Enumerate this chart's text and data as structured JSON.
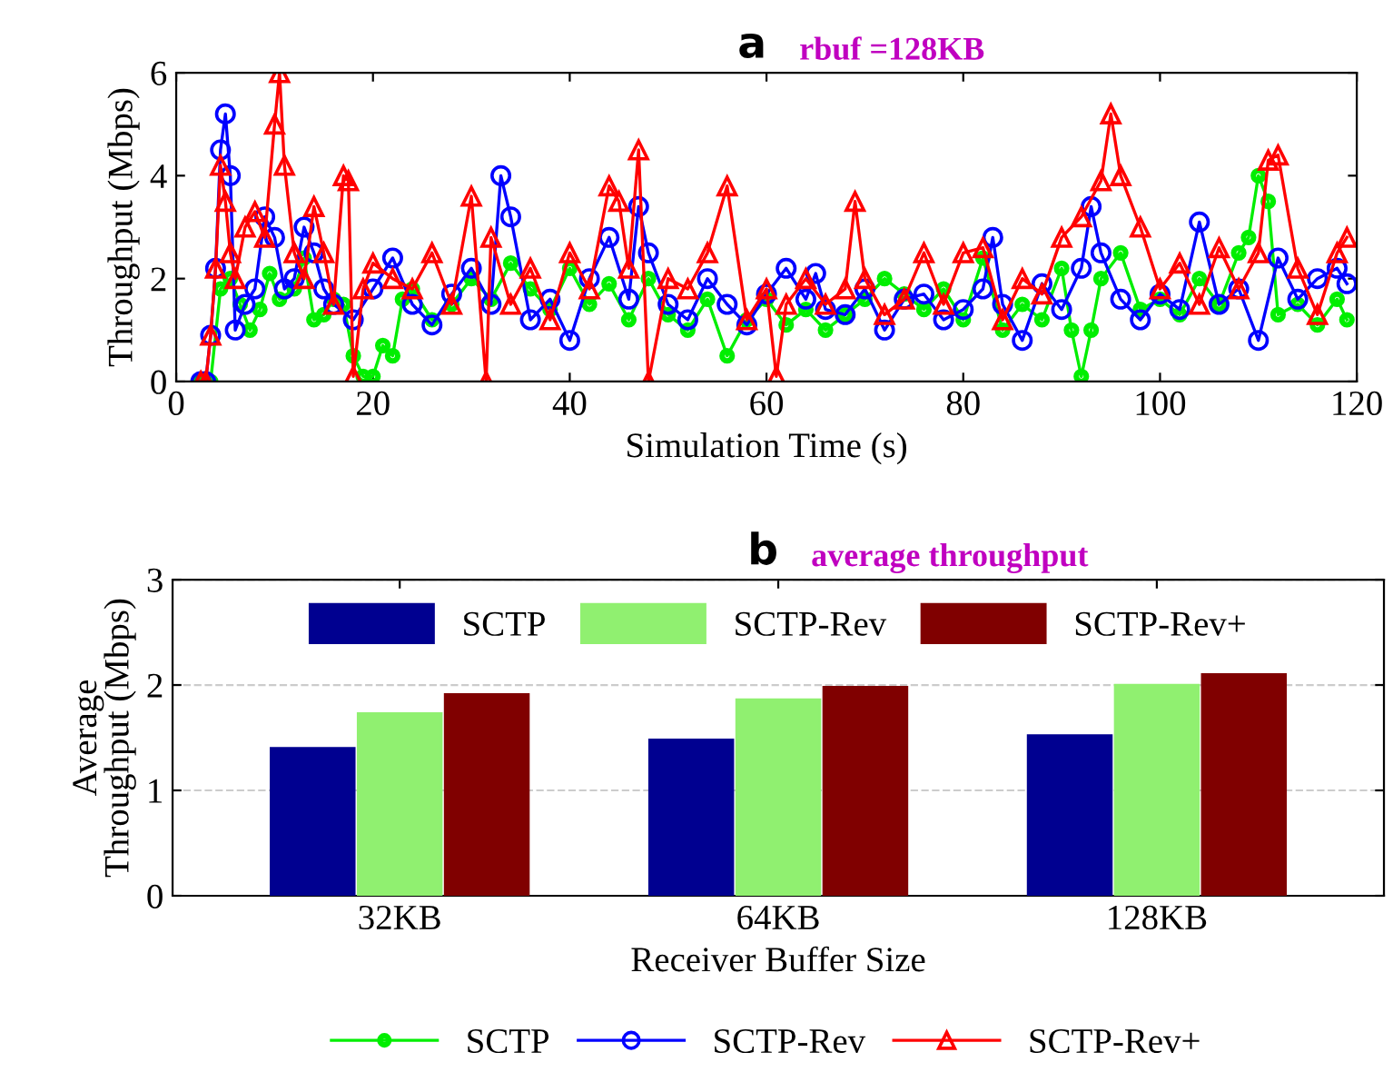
{
  "chart_data": [
    {
      "type": "line",
      "title": "a",
      "subtitle": "rbuf =128KB",
      "xlabel": "Simulation Time (s)",
      "ylabel": "Throughput (Mbps)",
      "xlim": [
        0,
        120
      ],
      "xticks": [
        0,
        20,
        40,
        60,
        80,
        100,
        120
      ],
      "ylim": [
        0,
        6
      ],
      "yticks": [
        0,
        2,
        4,
        6
      ],
      "grid": false,
      "legend": "bottom",
      "line_style": "solid",
      "series": [
        {
          "name": "SCTP",
          "color": "#00ee00",
          "marker": "circle",
          "x": [
            2.5,
            3,
            3.5,
            4.5,
            5.5,
            6.5,
            7.5,
            8.5,
            9.5,
            10.5,
            12,
            13,
            14,
            15,
            16,
            17,
            18,
            19,
            20,
            21,
            22,
            23,
            24,
            26,
            28,
            30,
            32,
            34,
            36,
            38,
            40,
            42,
            44,
            46,
            48,
            50,
            52,
            54,
            56,
            58,
            60,
            62,
            64,
            66,
            68,
            70,
            72,
            74,
            76,
            78,
            80,
            82,
            84,
            86,
            88,
            90,
            91,
            92,
            93,
            94,
            96,
            98,
            100,
            102,
            104,
            106,
            108,
            109,
            110,
            111,
            112,
            114,
            116,
            118,
            119
          ],
          "values": [
            0,
            0,
            0,
            1.8,
            2,
            1.5,
            1,
            1.4,
            2.1,
            1.6,
            1.8,
            2.4,
            1.2,
            1.3,
            1.6,
            1.5,
            0.5,
            0.1,
            0.1,
            0.7,
            0.5,
            1.6,
            1.8,
            1.2,
            1.5,
            2.0,
            1.6,
            2.3,
            1.8,
            1.4,
            2.2,
            1.5,
            1.9,
            1.2,
            2.0,
            1.3,
            1.0,
            1.6,
            0.5,
            1.2,
            1.6,
            1.1,
            1.4,
            1.0,
            1.3,
            1.6,
            2.0,
            1.7,
            1.4,
            1.8,
            1.2,
            2.4,
            1.0,
            1.5,
            1.2,
            2.2,
            1.0,
            0.1,
            1.0,
            2.0,
            2.5,
            1.4,
            1.6,
            1.3,
            2.0,
            1.5,
            2.5,
            2.8,
            4.0,
            3.5,
            1.3,
            1.5,
            1.1,
            1.6,
            1.2
          ]
        },
        {
          "name": "SCTP-Rev",
          "color": "#0000ff",
          "marker": "circle",
          "x": [
            2.5,
            3,
            3.5,
            4,
            4.5,
            5,
            5.5,
            6,
            7,
            8,
            9,
            10,
            11,
            12,
            13,
            14,
            15,
            16,
            18,
            20,
            22,
            24,
            26,
            28,
            30,
            32,
            33,
            34,
            36,
            38,
            40,
            42,
            44,
            46,
            47,
            48,
            50,
            52,
            54,
            56,
            58,
            60,
            62,
            64,
            65,
            66,
            68,
            70,
            72,
            74,
            76,
            78,
            80,
            82,
            83,
            84,
            86,
            88,
            90,
            92,
            93,
            94,
            96,
            98,
            100,
            102,
            104,
            106,
            108,
            110,
            112,
            114,
            116,
            118,
            119
          ],
          "values": [
            0,
            0,
            0.9,
            2.2,
            4.5,
            5.2,
            4.0,
            1.0,
            1.5,
            1.8,
            3.2,
            2.8,
            1.8,
            2.0,
            3.0,
            2.5,
            1.8,
            1.5,
            1.2,
            1.8,
            2.4,
            1.5,
            1.1,
            1.7,
            2.2,
            1.5,
            4.0,
            3.2,
            1.2,
            1.6,
            0.8,
            2.0,
            2.8,
            1.6,
            3.4,
            2.5,
            1.5,
            1.2,
            2.0,
            1.5,
            1.1,
            1.7,
            2.2,
            1.6,
            2.1,
            1.4,
            1.3,
            1.8,
            1.0,
            1.6,
            1.7,
            1.2,
            1.4,
            1.8,
            2.8,
            1.5,
            0.8,
            1.9,
            1.4,
            2.2,
            3.4,
            2.5,
            1.6,
            1.2,
            1.7,
            1.4,
            3.1,
            1.5,
            1.8,
            0.8,
            2.4,
            1.6,
            2.0,
            2.2,
            1.9
          ]
        },
        {
          "name": "SCTP-Rev+",
          "color": "#ff0000",
          "marker": "triangle",
          "x": [
            2.5,
            3,
            3.5,
            4,
            4.5,
            5,
            5.5,
            6,
            7,
            8,
            9,
            10,
            10.5,
            11,
            12,
            13,
            14,
            15,
            16,
            17,
            17.5,
            18,
            19,
            20,
            22,
            24,
            26,
            28,
            30,
            31.5,
            32,
            34,
            36,
            38,
            40,
            42,
            44,
            45,
            46,
            47,
            48,
            50,
            52,
            54,
            56,
            58,
            60,
            61,
            62,
            64,
            66,
            68,
            69,
            70,
            72,
            74,
            76,
            78,
            80,
            82,
            84,
            86,
            88,
            90,
            92,
            94,
            95,
            96,
            98,
            100,
            102,
            104,
            106,
            108,
            110,
            111,
            112,
            114,
            116,
            118,
            119
          ],
          "values": [
            0,
            0,
            0.9,
            2.2,
            4.2,
            3.5,
            2.5,
            2.0,
            3.0,
            3.3,
            2.8,
            5.0,
            6.0,
            4.2,
            2.5,
            2.0,
            3.4,
            2.5,
            1.5,
            4.0,
            3.9,
            0.1,
            1.8,
            2.3,
            2.0,
            1.8,
            2.5,
            1.5,
            3.6,
            0,
            2.8,
            1.5,
            2.2,
            1.2,
            2.5,
            1.8,
            3.8,
            3.5,
            2.2,
            4.5,
            0,
            2.0,
            1.8,
            2.5,
            3.8,
            1.2,
            1.8,
            0.1,
            1.5,
            2.0,
            1.5,
            1.8,
            3.5,
            2.0,
            1.3,
            1.6,
            2.5,
            1.5,
            2.5,
            2.6,
            1.2,
            2.0,
            1.7,
            2.8,
            3.2,
            3.9,
            5.2,
            4.0,
            3.0,
            1.8,
            2.3,
            1.5,
            2.6,
            1.8,
            2.5,
            4.3,
            4.4,
            2.2,
            1.3,
            2.5,
            2.8
          ]
        }
      ]
    },
    {
      "type": "bar",
      "title": "b",
      "subtitle": "average throughput",
      "xlabel": "Receiver Buffer Size",
      "ylabel": "Average\nThroughput (Mbps)",
      "categories": [
        "32KB",
        "64KB",
        "128KB"
      ],
      "ylim": [
        0,
        3
      ],
      "yticks": [
        0,
        1,
        2,
        3
      ],
      "grid": "y",
      "legend": "top",
      "series": [
        {
          "name": "SCTP",
          "color": "#000090",
          "values": [
            1.4,
            1.48,
            1.52
          ]
        },
        {
          "name": "SCTP-Rev",
          "color": "#90f070",
          "values": [
            1.73,
            1.86,
            2.0
          ]
        },
        {
          "name": "SCTP-Rev+",
          "color": "#800000",
          "values": [
            1.91,
            1.98,
            2.1
          ]
        }
      ]
    }
  ]
}
